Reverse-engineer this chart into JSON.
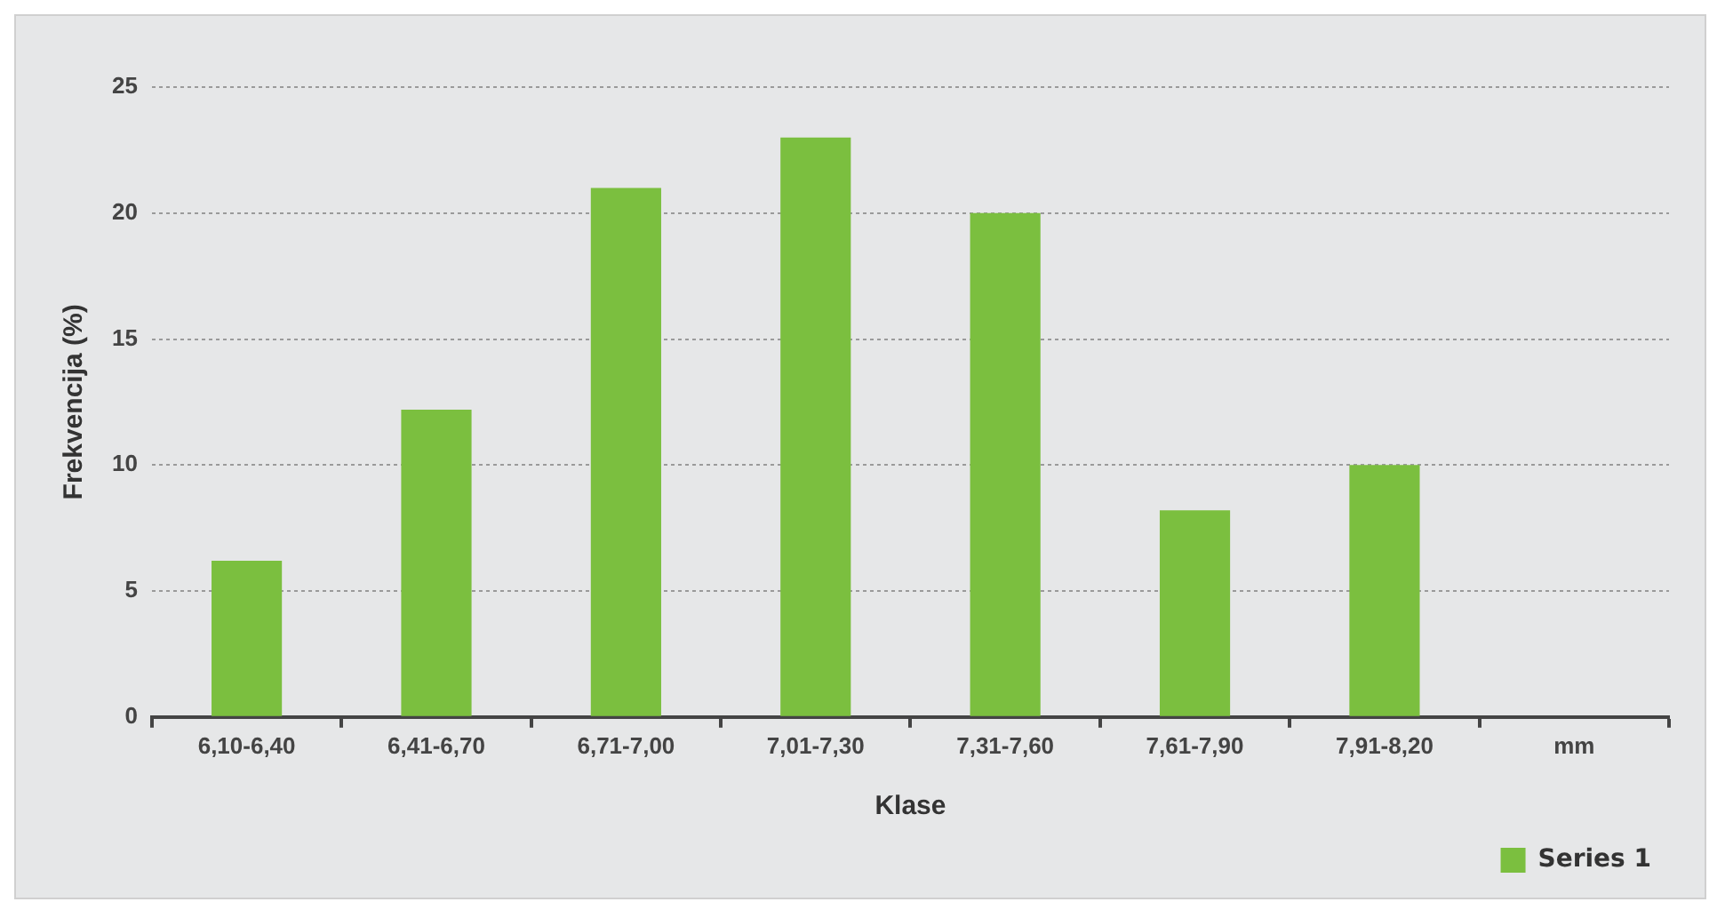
{
  "chart_data": {
    "type": "bar",
    "xlabel": "Klase",
    "ylabel": "Frekvencija (%)",
    "categories": [
      "6,10-6,40",
      "6,41-6,70",
      "6,71-7,00",
      "7,01-7,30",
      "7,31-7,60",
      "7,61-7,90",
      "7,91-8,20",
      "mm"
    ],
    "series": [
      {
        "name": "Series 1",
        "color": "#7bbf3f",
        "values": [
          6.2,
          12.2,
          21,
          23,
          20,
          8.2,
          10,
          null
        ]
      }
    ],
    "ylim": [
      0,
      25
    ],
    "yticks": [
      0,
      5,
      10,
      15,
      20,
      25
    ],
    "grid": "y",
    "legend": "bottom right"
  }
}
